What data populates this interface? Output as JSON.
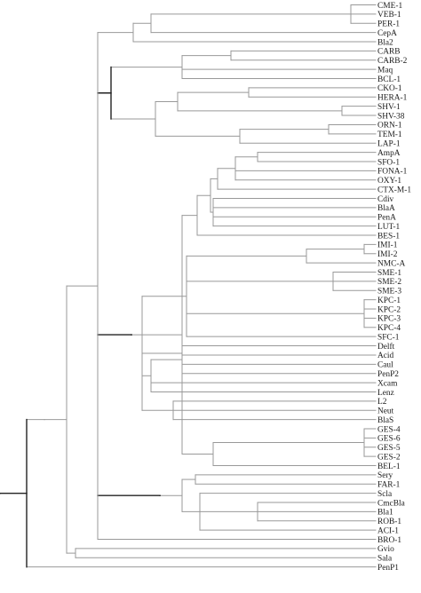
{
  "tree": {
    "leaves": [
      "CME-1",
      "VEB-1",
      "PER-1",
      "CepA",
      "Bla2",
      "CARB",
      "CARB-2",
      "Maq",
      "BCL-1",
      "CKO-1",
      "HERA-1",
      "SHV-1",
      "SHV-38",
      "ORN-1",
      "TEM-1",
      "LAP-1",
      "AmpA",
      "SFO-1",
      "FONA-1",
      "OXY-1",
      "CTX-M-1",
      "Cdiv",
      "BlaA",
      "PenA",
      "LUT-1",
      "BES-1",
      "IMI-1",
      "IMI-2",
      "NMC-A",
      "SME-1",
      "SME-2",
      "SME-3",
      "KPC-1",
      "KPC-2",
      "KPC-3",
      "KPC-4",
      "SFC-1",
      "Delft",
      "Acid",
      "Caul",
      "PenP2",
      "Xcam",
      "Lenz",
      "L2",
      "Neut",
      "BlaS",
      "GES-4",
      "GES-6",
      "GES-5",
      "GES-2",
      "BEL-1",
      "Sery",
      "FAR-1",
      "Scla",
      "CmcBla",
      "Bla1",
      "ROB-1",
      "ACI-1",
      "BRO-1",
      "Gvio",
      "Sala",
      "PenP1"
    ],
    "edge_color": "#999999",
    "emphasis_color": "#222222",
    "label_color": "#1a1a1a"
  }
}
